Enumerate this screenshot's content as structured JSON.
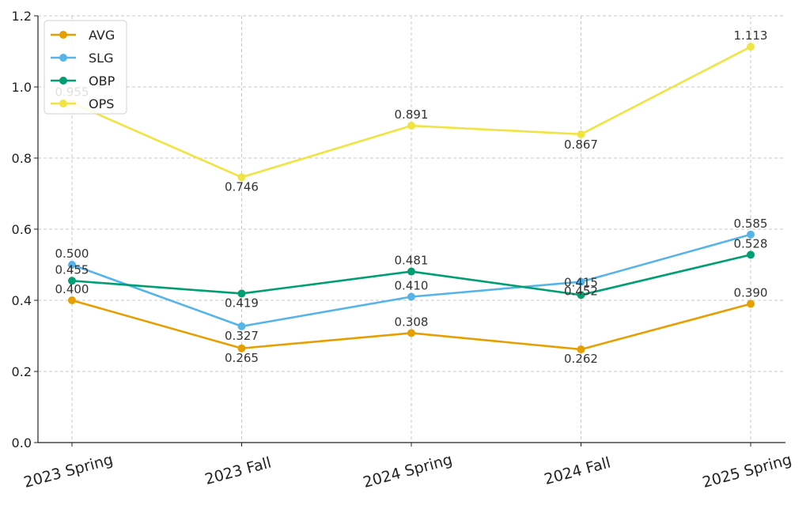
{
  "chart_data": {
    "type": "line",
    "title": "",
    "xlabel": "",
    "ylabel": "",
    "categories": [
      "2023 Spring",
      "2023 Fall",
      "2024 Spring",
      "2024 Fall",
      "2025 Spring"
    ],
    "ylim": [
      0,
      1.2
    ],
    "yticks": [
      "0.0",
      "0.2",
      "0.4",
      "0.6",
      "0.8",
      "1.0",
      "1.2"
    ],
    "grid": true,
    "legend_position": "top-left",
    "series": [
      {
        "name": "AVG",
        "color": "#E69F00",
        "values": [
          0.4,
          0.265,
          0.308,
          0.262,
          0.39
        ],
        "labels": [
          "0.400",
          "0.265",
          "0.308",
          "0.262",
          "0.390"
        ]
      },
      {
        "name": "SLG",
        "color": "#56B4E9",
        "values": [
          0.5,
          0.327,
          0.41,
          0.452,
          0.585
        ],
        "labels": [
          "0.500",
          "0.327",
          "0.410",
          "0.452",
          "0.585"
        ]
      },
      {
        "name": "OBP",
        "color": "#009E73",
        "values": [
          0.455,
          0.419,
          0.481,
          0.415,
          0.528
        ],
        "labels": [
          "0.455",
          "0.419",
          "0.481",
          "0.415",
          "0.528"
        ]
      },
      {
        "name": "OPS",
        "color": "#F0E442",
        "values": [
          0.955,
          0.746,
          0.891,
          0.867,
          1.113
        ],
        "labels": [
          "0.955",
          "0.746",
          "0.891",
          "0.867",
          "1.113"
        ]
      }
    ]
  }
}
